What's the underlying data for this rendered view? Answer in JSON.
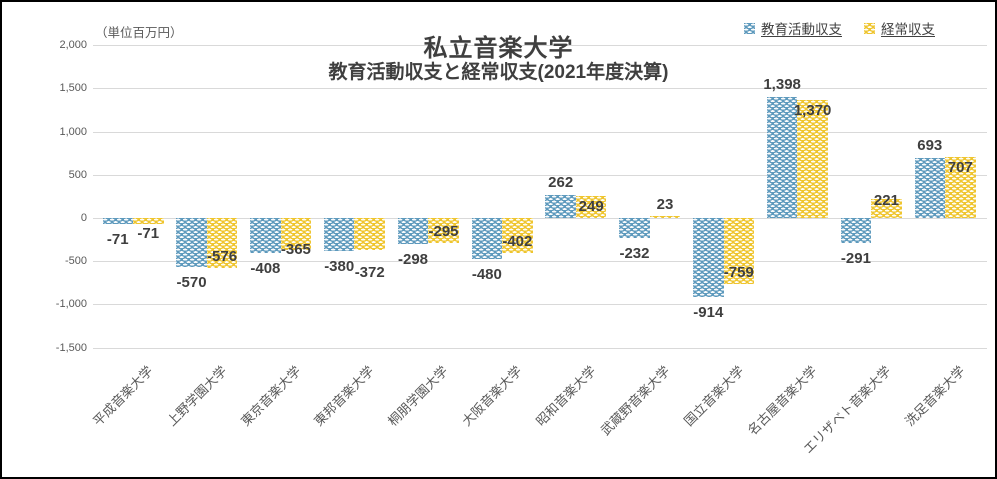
{
  "chart_data": {
    "type": "bar",
    "title": "私立音楽大学",
    "subtitle": "教育活動収支と経常収支(2021年度決算)",
    "unit_label": "（単位百万円）",
    "categories": [
      "平成音楽大学",
      "上野学園大学",
      "東京音楽大学",
      "東邦音楽大学",
      "桐朋学園大学",
      "大阪音楽大学",
      "昭和音楽大学",
      "武蔵野音楽大学",
      "国立音楽大学",
      "名古屋音楽大学",
      "エリザベト音楽大学",
      "洗足音楽大学"
    ],
    "series": [
      {
        "name": "教育活動収支",
        "color": "#5e9abd",
        "values": [
          -71,
          -570,
          -408,
          -380,
          -298,
          -480,
          262,
          -232,
          -914,
          1398,
          -291,
          693
        ]
      },
      {
        "name": "経常収支",
        "color": "#efc52f",
        "values": [
          -71,
          -576,
          -365,
          -372,
          -295,
          -402,
          249,
          23,
          -759,
          1370,
          221,
          707
        ]
      }
    ],
    "ylim": [
      -1500,
      2000
    ],
    "ytick_interval": 500,
    "ytick_labels": [
      "2,000",
      "1,500",
      "1,000",
      "500",
      "0",
      "-500",
      "-1,000",
      "-1,500"
    ],
    "grid": "horizontal",
    "legend_position": "top-right",
    "value_format": "thousands-comma",
    "label_color": "#3f3f3f",
    "gridline_color": "#d9d9d9"
  }
}
